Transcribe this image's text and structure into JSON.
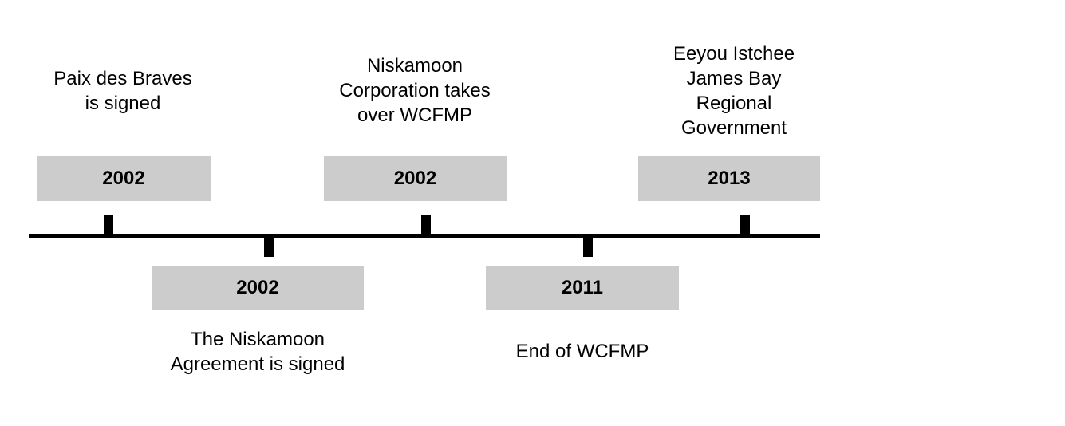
{
  "timeline": {
    "events": [
      {
        "year": "2002",
        "label": "Paix des Braves\nis signed"
      },
      {
        "year": "2002",
        "label": "The Niskamoon\nAgreement is signed"
      },
      {
        "year": "2002",
        "label": "Niskamoon\nCorporation takes\nover WCFMP"
      },
      {
        "year": "2011",
        "label": "End of WCFMP"
      },
      {
        "year": "2013",
        "label": "Eeyou Istchee\nJames Bay\nRegional\nGovernment"
      }
    ]
  },
  "colors": {
    "box_fill": "#cccccc",
    "line": "#000000",
    "text": "#000000"
  }
}
